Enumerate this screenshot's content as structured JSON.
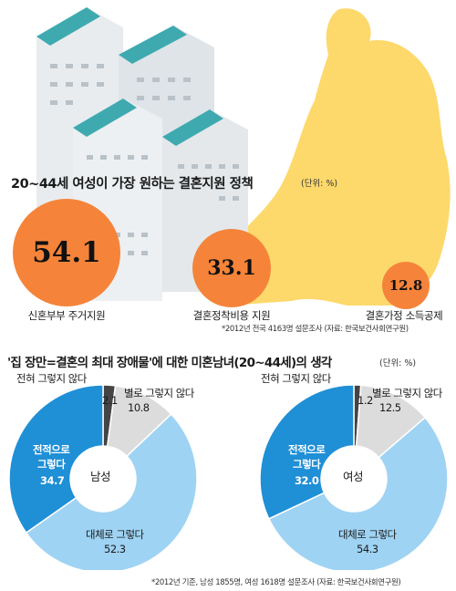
{
  "chart_data": [
    {
      "type": "bubble",
      "title": "20~44세 여성이 가장 원하는 결혼지원 정책",
      "unit": "(단위: %)",
      "categories": [
        "신혼부부 주거지원",
        "결혼정착비용 지원",
        "결혼가정 소득공제"
      ],
      "values": [
        54.1,
        33.1,
        12.8
      ],
      "value_labels": [
        "54.1",
        "33.1",
        "12.8"
      ],
      "source": "*2012년 전국 4163명 설문조사 (자료: 한국보건사회연구원)"
    },
    {
      "type": "pie",
      "title": "'집 장만=결혼의 최대 장애물'에 대한 미혼남녀(20~44세)의 생각",
      "unit": "(단위: %)",
      "center_label": "남성",
      "categories": [
        "전혀 그렇지 않다",
        "별로 그렇지 않다",
        "대체로 그렇다",
        "전적으로 그렇다"
      ],
      "values": [
        2.1,
        10.8,
        52.3,
        34.7
      ],
      "value_labels": [
        "2.1",
        "10.8",
        "52.3",
        "34.7"
      ],
      "label_texts": [
        "전혀 그렇지 않다",
        "별로 그렇지 않다",
        "대체로 그렇다",
        "전적으로\n그렇다"
      ]
    },
    {
      "type": "pie",
      "center_label": "여성",
      "categories": [
        "전혀 그렇지 않다",
        "별로 그렇지 않다",
        "대체로 그렇다",
        "전적으로 그렇다"
      ],
      "values": [
        1.2,
        12.5,
        54.3,
        32.0
      ],
      "value_labels": [
        "1.2",
        "12.5",
        "54.3",
        "32.0"
      ],
      "label_texts": [
        "전혀 그렇지 않다",
        "별로 그렇지 않다",
        "대체로 그렇다",
        "전적으로\n그렇다"
      ],
      "source": "*2012년 기준, 남성 1855명, 여성 1618명 설문조사 (자료: 한국보건사회연구원)"
    }
  ],
  "colors": {
    "orange": "#f5843a",
    "yellow": "#fdd96c",
    "building_light": "#e8ecef",
    "building_roof": "#3eaab0",
    "dark_blue": "#1f8fd6",
    "light_blue": "#9fd3f3",
    "light_gray": "#dcdcdc",
    "dark_gray": "#444444"
  }
}
